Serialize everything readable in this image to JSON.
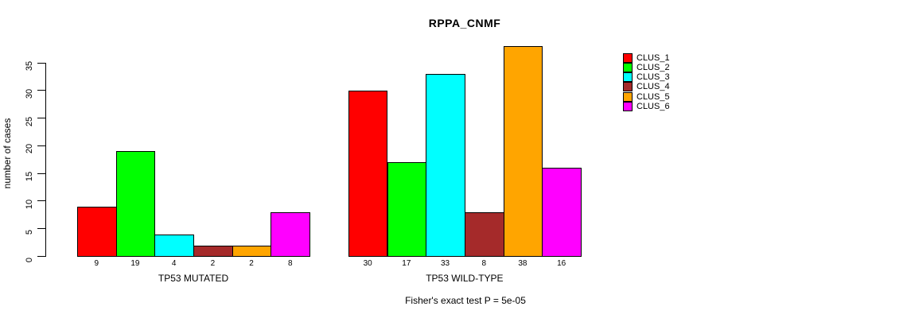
{
  "chart_data": {
    "type": "bar",
    "title": "RPPA_CNMF",
    "ylabel": "number of cases",
    "xlabel": "",
    "yticks": [
      0,
      5,
      10,
      15,
      20,
      25,
      30,
      35
    ],
    "ylim": [
      0,
      38
    ],
    "grid": false,
    "legend_position": "right-outside",
    "bar_value_labels_shown": true,
    "series": [
      {
        "name": "CLUS_1",
        "color": "#FF0000"
      },
      {
        "name": "CLUS_2",
        "color": "#00FF00"
      },
      {
        "name": "CLUS_3",
        "color": "#00FFFF"
      },
      {
        "name": "CLUS_4",
        "color": "#A52A2A"
      },
      {
        "name": "CLUS_5",
        "color": "#FFA500"
      },
      {
        "name": "CLUS_6",
        "color": "#FF00FF"
      }
    ],
    "groups": [
      {
        "label": "TP53 MUTATED",
        "values": [
          9,
          19,
          4,
          2,
          2,
          8
        ]
      },
      {
        "label": "TP53 WILD-TYPE",
        "values": [
          30,
          17,
          33,
          8,
          38,
          16
        ]
      }
    ],
    "annotation": "Fisher's exact test P = 5e-05"
  }
}
